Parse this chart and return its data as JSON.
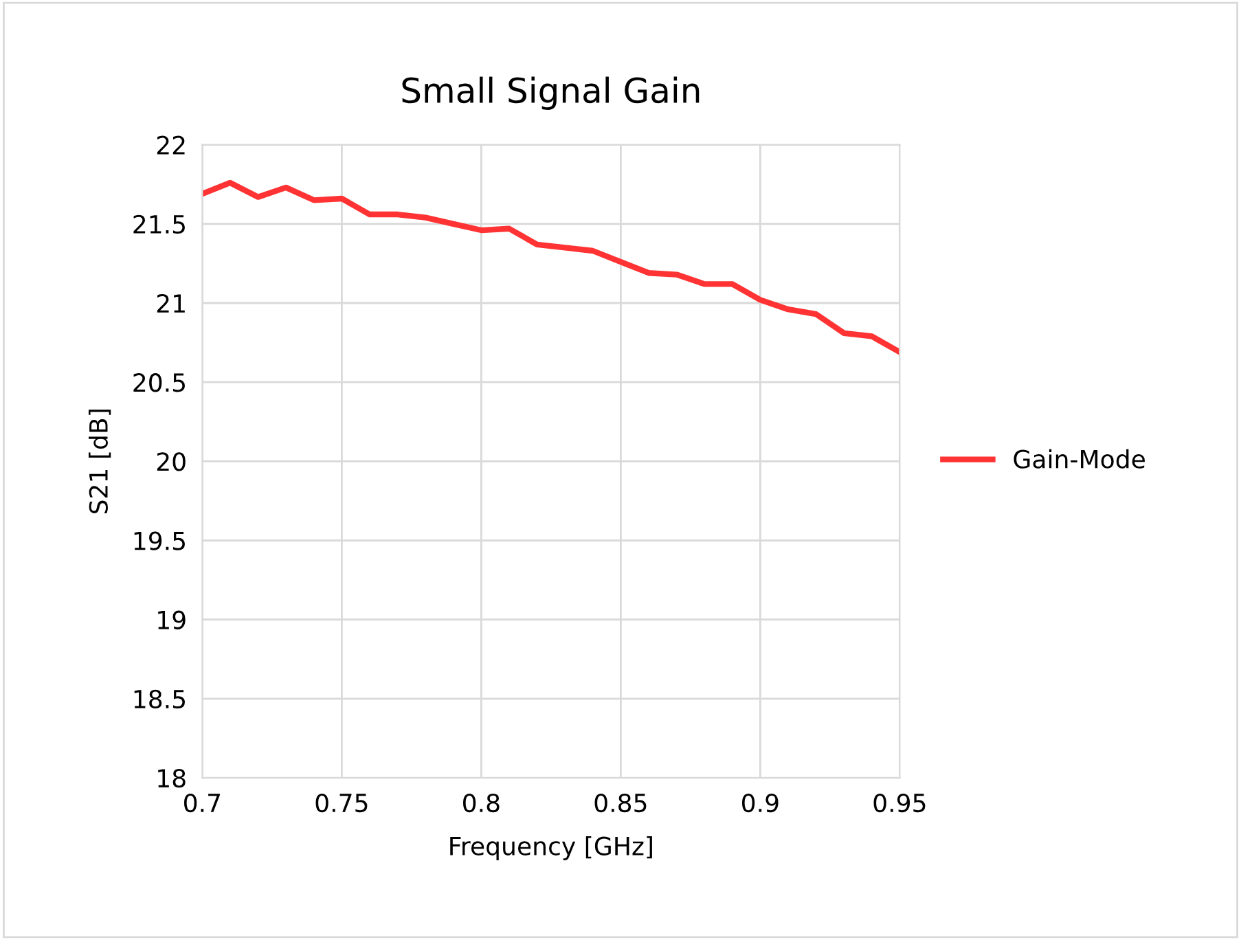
{
  "chart_data": {
    "type": "line",
    "title": "Small Signal Gain",
    "xlabel": "Frequency [GHz]",
    "ylabel": "S21 [dB]",
    "x": [
      0.7,
      0.71,
      0.72,
      0.73,
      0.74,
      0.75,
      0.76,
      0.77,
      0.78,
      0.79,
      0.8,
      0.81,
      0.82,
      0.83,
      0.84,
      0.85,
      0.86,
      0.87,
      0.88,
      0.89,
      0.9,
      0.91,
      0.92,
      0.93,
      0.94,
      0.95
    ],
    "series": [
      {
        "name": "Gain-Mode",
        "color": "#ff3333",
        "values": [
          21.69,
          21.76,
          21.67,
          21.73,
          21.65,
          21.66,
          21.56,
          21.56,
          21.54,
          21.5,
          21.46,
          21.47,
          21.37,
          21.35,
          21.33,
          21.26,
          21.19,
          21.18,
          21.12,
          21.12,
          21.02,
          20.96,
          20.93,
          20.81,
          20.79,
          20.69
        ]
      }
    ],
    "xlim": [
      0.7,
      0.95
    ],
    "xticks": [
      0.7,
      0.75,
      0.8,
      0.85,
      0.9,
      0.95
    ],
    "ylim": [
      18,
      22
    ],
    "yticks": [
      18,
      18.5,
      19,
      19.5,
      20,
      20.5,
      21,
      21.5,
      22
    ],
    "grid": true,
    "legend": "right",
    "marker": "none",
    "line_style": "solid"
  }
}
